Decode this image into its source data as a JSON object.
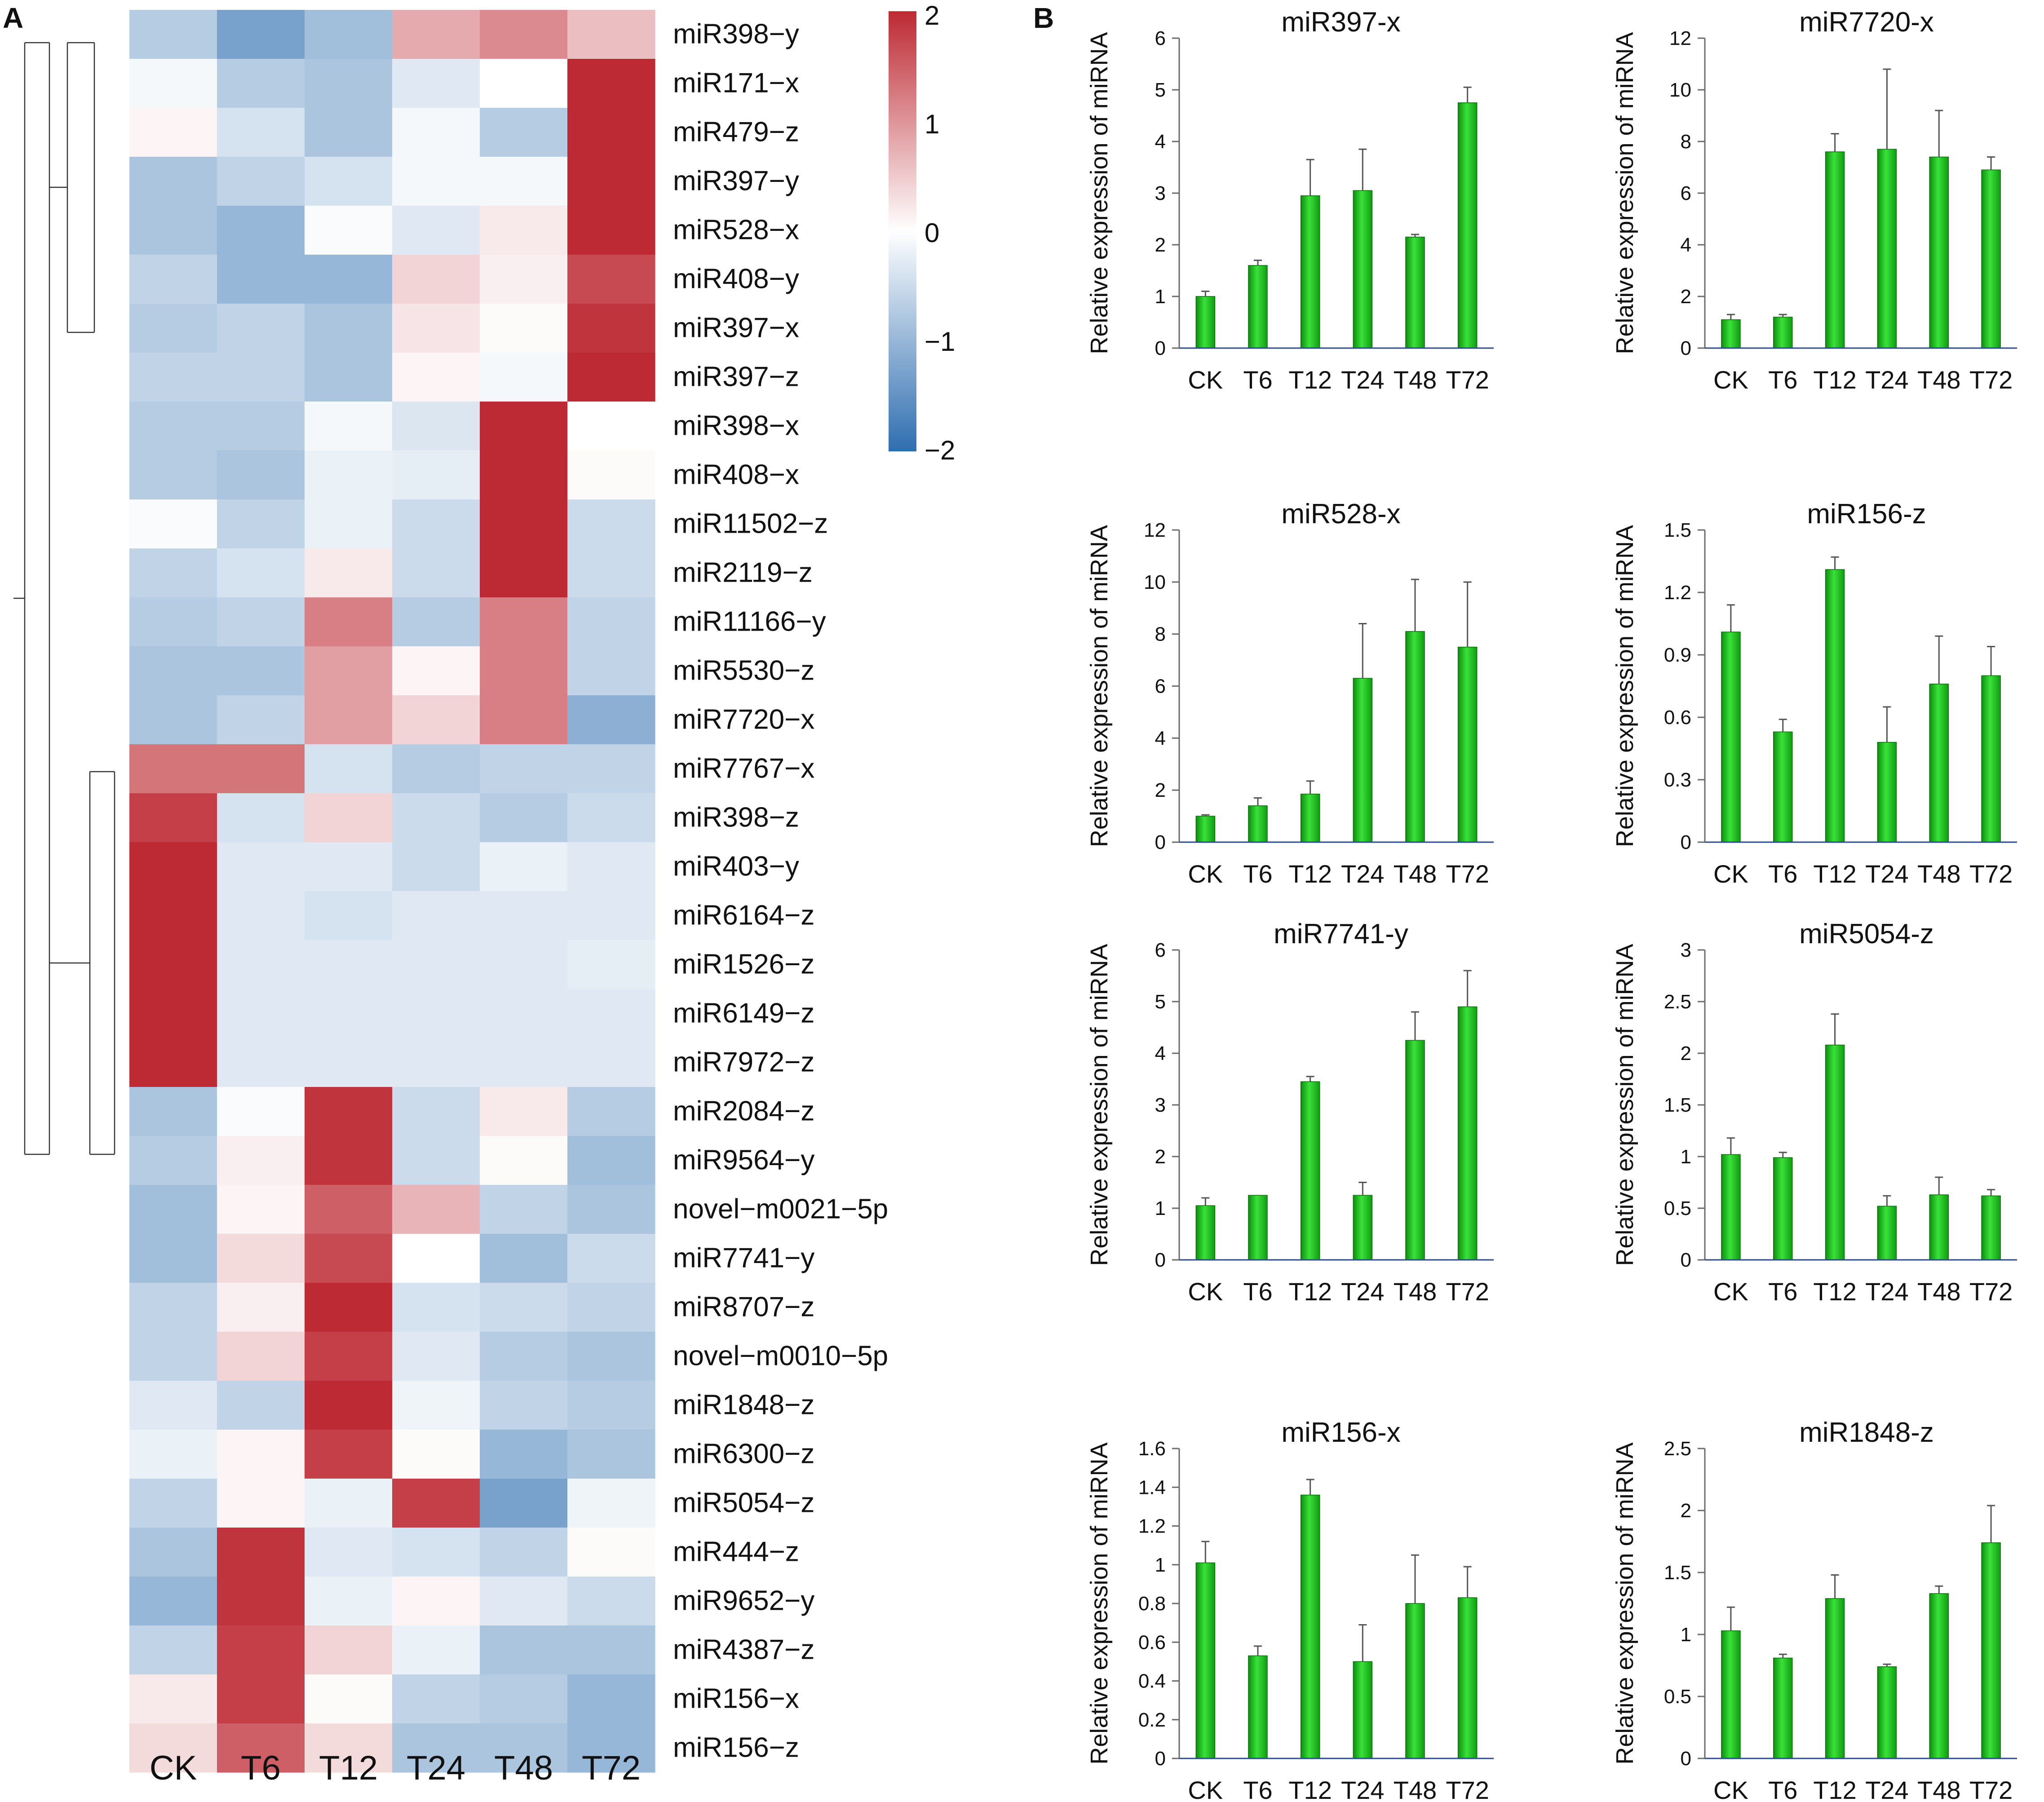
{
  "panels": {
    "a_label": "A",
    "b_label": "B"
  },
  "chart_data": [
    {
      "type": "heatmap",
      "title": "",
      "columns": [
        "CK",
        "T6",
        "T12",
        "T24",
        "T48",
        "T72"
      ],
      "rows": [
        "miR398−y",
        "miR171−x",
        "miR479−z",
        "miR397−y",
        "miR528−x",
        "miR408−y",
        "miR397−x",
        "miR397−z",
        "miR398−x",
        "miR408−x",
        "miR11502−z",
        "miR2119−z",
        "miR11166−y",
        "miR5530−z",
        "miR7720−x",
        "miR7767−x",
        "miR398−z",
        "miR403−y",
        "miR6164−z",
        "miR1526−z",
        "miR6149−z",
        "miR7972−z",
        "miR2084−z",
        "miR9564−y",
        "novel−m0021−5p",
        "miR7741−y",
        "miR8707−z",
        "novel−m0010−5p",
        "miR1848−z",
        "miR6300−z",
        "miR5054−z",
        "miR444−z",
        "miR9652−y",
        "miR4387−z",
        "miR156−x",
        "miR156−z"
      ],
      "values": [
        [
          -0.7,
          -1.3,
          -0.9,
          0.8,
          1.1,
          0.6
        ],
        [
          -0.1,
          -0.7,
          -0.8,
          -0.3,
          0.0,
          2.0
        ],
        [
          0.1,
          -0.4,
          -0.8,
          -0.1,
          -0.7,
          2.0
        ],
        [
          -0.8,
          -0.6,
          -0.4,
          -0.1,
          -0.1,
          2.0
        ],
        [
          -0.8,
          -1.0,
          -0.05,
          -0.3,
          0.2,
          2.0
        ],
        [
          -0.6,
          -1.0,
          -1.0,
          0.4,
          0.15,
          1.7
        ],
        [
          -0.7,
          -0.6,
          -0.8,
          0.25,
          0.05,
          1.9
        ],
        [
          -0.6,
          -0.6,
          -0.8,
          0.1,
          -0.1,
          2.0
        ],
        [
          -0.7,
          -0.7,
          -0.1,
          -0.35,
          2.0,
          0.0
        ],
        [
          -0.7,
          -0.8,
          -0.2,
          -0.25,
          2.0,
          0.05
        ],
        [
          -0.05,
          -0.6,
          -0.2,
          -0.5,
          2.0,
          -0.5
        ],
        [
          -0.6,
          -0.4,
          0.2,
          -0.5,
          2.0,
          -0.5
        ],
        [
          -0.7,
          -0.6,
          1.2,
          -0.7,
          1.2,
          -0.6
        ],
        [
          -0.8,
          -0.8,
          0.9,
          0.1,
          1.2,
          -0.6
        ],
        [
          -0.8,
          -0.6,
          0.9,
          0.4,
          1.2,
          -1.1
        ],
        [
          1.3,
          1.3,
          -0.4,
          -0.7,
          -0.6,
          -0.6
        ],
        [
          1.8,
          -0.4,
          0.4,
          -0.5,
          -0.7,
          -0.5
        ],
        [
          2.0,
          -0.3,
          -0.3,
          -0.5,
          -0.2,
          -0.3
        ],
        [
          2.0,
          -0.3,
          -0.4,
          -0.3,
          -0.3,
          -0.3
        ],
        [
          2.0,
          -0.3,
          -0.3,
          -0.3,
          -0.3,
          -0.25
        ],
        [
          2.0,
          -0.3,
          -0.3,
          -0.3,
          -0.3,
          -0.3
        ],
        [
          2.0,
          -0.3,
          -0.3,
          -0.3,
          -0.3,
          -0.3
        ],
        [
          -0.8,
          -0.05,
          1.9,
          -0.5,
          0.2,
          -0.7
        ],
        [
          -0.7,
          0.15,
          1.9,
          -0.5,
          0.05,
          -0.9
        ],
        [
          -0.9,
          0.1,
          1.5,
          0.7,
          -0.6,
          -0.8
        ],
        [
          -0.9,
          0.35,
          1.7,
          0.0,
          -0.9,
          -0.5
        ],
        [
          -0.6,
          0.15,
          2.0,
          -0.4,
          -0.5,
          -0.6
        ],
        [
          -0.6,
          0.4,
          1.8,
          -0.3,
          -0.7,
          -0.8
        ],
        [
          -0.3,
          -0.6,
          2.0,
          -0.15,
          -0.6,
          -0.7
        ],
        [
          -0.2,
          0.1,
          1.8,
          0.05,
          -1.0,
          -0.8
        ],
        [
          -0.6,
          0.1,
          -0.2,
          1.8,
          -1.3,
          -0.15
        ],
        [
          -0.8,
          1.9,
          -0.3,
          -0.4,
          -0.6,
          0.05
        ],
        [
          -1.0,
          1.9,
          -0.2,
          0.1,
          -0.3,
          -0.5
        ],
        [
          -0.6,
          1.8,
          0.4,
          -0.2,
          -0.8,
          -0.8
        ],
        [
          0.2,
          1.8,
          0.05,
          -0.6,
          -0.7,
          -1.0
        ],
        [
          0.35,
          1.5,
          0.35,
          -0.8,
          -0.8,
          -1.0
        ]
      ],
      "color_scale": {
        "min": -2,
        "max": 2,
        "ticks": [
          "2",
          "1",
          "0",
          "−1",
          "−2"
        ],
        "low_color": "#2f6eb0",
        "mid_color": "#ffffff",
        "high_color": "#bd2a33"
      },
      "legend": "top-right"
    },
    {
      "type": "bar",
      "title": "miR397-x",
      "ylabel": "Relative expression of miRNA",
      "categories": [
        "CK",
        "T6",
        "T12",
        "T24",
        "T48",
        "T72"
      ],
      "values": [
        1.0,
        1.6,
        2.95,
        3.05,
        2.15,
        4.75
      ],
      "errors": [
        0.1,
        0.1,
        0.7,
        0.8,
        0.05,
        0.3
      ],
      "ylim": [
        0,
        6
      ],
      "yticks": [
        "0",
        "1",
        "2",
        "3",
        "4",
        "5",
        "6"
      ]
    },
    {
      "type": "bar",
      "title": "miR7720-x",
      "ylabel": "Relative expression of miRNA",
      "categories": [
        "CK",
        "T6",
        "T12",
        "T24",
        "T48",
        "T72"
      ],
      "values": [
        1.1,
        1.2,
        7.6,
        7.7,
        7.4,
        6.9
      ],
      "errors": [
        0.2,
        0.1,
        0.7,
        3.1,
        1.8,
        0.5
      ],
      "ylim": [
        0,
        12
      ],
      "yticks": [
        "0",
        "2",
        "4",
        "6",
        "8",
        "10",
        "12"
      ]
    },
    {
      "type": "bar",
      "title": "miR528-x",
      "ylabel": "Relative expression of miRNA",
      "categories": [
        "CK",
        "T6",
        "T12",
        "T24",
        "T48",
        "T72"
      ],
      "values": [
        1.0,
        1.4,
        1.85,
        6.3,
        8.1,
        7.5
      ],
      "errors": [
        0.05,
        0.3,
        0.5,
        2.1,
        2.0,
        2.5
      ],
      "ylim": [
        0,
        12
      ],
      "yticks": [
        "0",
        "2",
        "4",
        "6",
        "8",
        "10",
        "12"
      ]
    },
    {
      "type": "bar",
      "title": "miR156-z",
      "ylabel": "Relative expression of miRNA",
      "categories": [
        "CK",
        "T6",
        "T12",
        "T24",
        "T48",
        "T72"
      ],
      "values": [
        1.01,
        0.53,
        1.31,
        0.48,
        0.76,
        0.8
      ],
      "errors": [
        0.13,
        0.06,
        0.06,
        0.17,
        0.23,
        0.14
      ],
      "ylim": [
        0,
        1.5
      ],
      "yticks": [
        "0",
        "0.3",
        "0.6",
        "0.9",
        "1.2",
        "1.5"
      ]
    },
    {
      "type": "bar",
      "title": "miR7741-y",
      "ylabel": "Relative expression of miRNA",
      "categories": [
        "CK",
        "T6",
        "T12",
        "T24",
        "T48",
        "T72"
      ],
      "values": [
        1.05,
        1.25,
        3.45,
        1.25,
        4.25,
        4.9
      ],
      "errors": [
        0.15,
        0.0,
        0.1,
        0.25,
        0.55,
        0.7
      ],
      "ylim": [
        0,
        6
      ],
      "yticks": [
        "0",
        "1",
        "2",
        "3",
        "4",
        "5",
        "6"
      ]
    },
    {
      "type": "bar",
      "title": "miR5054-z",
      "ylabel": "Relative expression of miRNA",
      "categories": [
        "CK",
        "T6",
        "T12",
        "T24",
        "T48",
        "T72"
      ],
      "values": [
        1.02,
        0.99,
        2.08,
        0.52,
        0.63,
        0.62
      ],
      "errors": [
        0.16,
        0.05,
        0.3,
        0.1,
        0.17,
        0.06
      ],
      "ylim": [
        0,
        3
      ],
      "yticks": [
        "0",
        "0.5",
        "1",
        "1.5",
        "2",
        "2.5",
        "3"
      ]
    },
    {
      "type": "bar",
      "title": "miR156-x",
      "ylabel": "Relative expression of miRNA",
      "categories": [
        "CK",
        "T6",
        "T12",
        "T24",
        "T48",
        "T72"
      ],
      "values": [
        1.01,
        0.53,
        1.36,
        0.5,
        0.8,
        0.83
      ],
      "errors": [
        0.11,
        0.05,
        0.08,
        0.19,
        0.25,
        0.16
      ],
      "ylim": [
        0,
        1.6
      ],
      "yticks": [
        "0",
        "0.2",
        "0.4",
        "0.6",
        "0.8",
        "1",
        "1.2",
        "1.4",
        "1.6"
      ]
    },
    {
      "type": "bar",
      "title": "miR1848-z",
      "ylabel": "Relative expression of miRNA",
      "categories": [
        "CK",
        "T6",
        "T12",
        "T24",
        "T48",
        "T72"
      ],
      "values": [
        1.03,
        0.81,
        1.29,
        0.74,
        1.33,
        1.74
      ],
      "errors": [
        0.19,
        0.03,
        0.19,
        0.02,
        0.06,
        0.3
      ],
      "ylim": [
        0,
        2.5
      ],
      "yticks": [
        "0",
        "0.5",
        "1",
        "1.5",
        "2",
        "2.5"
      ]
    }
  ]
}
